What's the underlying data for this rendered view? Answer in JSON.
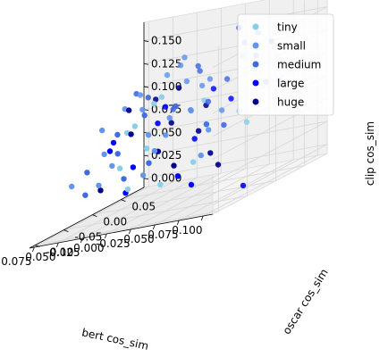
{
  "chart_data": {
    "type": "scatter",
    "projection": "3d",
    "xlabel": "bert cos_sim",
    "ylabel": "oscar cos_sim",
    "zlabel": "clip cos_sim",
    "xlim": [
      -0.11,
      0.08
    ],
    "ylim": [
      -0.11,
      0.09
    ],
    "zlim": [
      -0.01,
      0.17
    ],
    "xticks": [
      "-0.100",
      "-0.075",
      "-0.050",
      "-0.025",
      "0.000",
      "0.025",
      "0.050",
      "0.075"
    ],
    "yticks": [
      "-0.10",
      "-0.05",
      "0.00",
      "0.05"
    ],
    "zticks": [
      "0.000",
      "0.025",
      "0.050",
      "0.075",
      "0.100",
      "0.125",
      "0.150"
    ],
    "xtick_values": [
      -0.1,
      -0.075,
      -0.05,
      -0.025,
      0.0,
      0.025,
      0.05,
      0.075
    ],
    "ytick_values": [
      -0.1,
      -0.05,
      0.0,
      0.05
    ],
    "ztick_values": [
      0.0,
      0.025,
      0.05,
      0.075,
      0.1,
      0.125,
      0.15
    ],
    "grid": true,
    "legend_position": "top-right",
    "series": [
      {
        "name": "tiny",
        "color": "#87ceeb",
        "points": [
          [
            -0.07,
            0.03,
            0.11
          ],
          [
            -0.05,
            -0.02,
            0.07
          ],
          [
            -0.03,
            0.01,
            0.09
          ],
          [
            0.0,
            -0.04,
            0.06
          ],
          [
            -0.06,
            -0.06,
            0.04
          ],
          [
            0.02,
            0.02,
            0.1
          ],
          [
            -0.04,
            0.06,
            0.12
          ],
          [
            0.01,
            -0.07,
            0.05
          ],
          [
            -0.02,
            -0.05,
            0.02
          ],
          [
            0.03,
            -0.01,
            0.08
          ],
          [
            -0.08,
            0.0,
            0.06
          ],
          [
            0.04,
            0.04,
            0.09
          ],
          [
            -0.01,
            -0.09,
            0.03
          ],
          [
            0.05,
            0.01,
            0.07
          ],
          [
            -0.09,
            -0.03,
            0.08
          ]
        ]
      },
      {
        "name": "small",
        "color": "#6495ed",
        "points": [
          [
            -0.1,
            0.0,
            0.1
          ],
          [
            -0.07,
            -0.05,
            0.07
          ],
          [
            -0.06,
            0.05,
            0.12
          ],
          [
            -0.04,
            -0.03,
            0.09
          ],
          [
            -0.03,
            0.02,
            0.11
          ],
          [
            -0.02,
            -0.06,
            0.06
          ],
          [
            -0.01,
            0.04,
            0.1
          ],
          [
            0.0,
            0.0,
            0.08
          ],
          [
            0.01,
            -0.02,
            0.07
          ],
          [
            0.02,
            0.06,
            0.13
          ],
          [
            0.03,
            -0.05,
            0.05
          ],
          [
            0.04,
            0.02,
            0.09
          ],
          [
            0.05,
            -0.03,
            0.06
          ],
          [
            0.06,
            0.05,
            0.1
          ],
          [
            0.07,
            0.0,
            0.08
          ],
          [
            -0.05,
            0.07,
            0.14
          ],
          [
            -0.08,
            -0.08,
            0.05
          ],
          [
            0.02,
            -0.09,
            0.04
          ],
          [
            -0.03,
            0.08,
            0.13
          ],
          [
            0.06,
            -0.07,
            0.04
          ],
          [
            0.0,
            0.03,
            0.11
          ],
          [
            -0.06,
            -0.01,
            0.08
          ],
          [
            0.03,
            0.07,
            0.12
          ],
          [
            0.07,
            0.04,
            0.09
          ],
          [
            -0.02,
            -0.08,
            0.04
          ],
          [
            0.05,
            0.08,
            0.11
          ],
          [
            -0.09,
            0.04,
            0.09
          ],
          [
            0.01,
            0.01,
            0.06
          ]
        ]
      },
      {
        "name": "medium",
        "color": "#4169e1",
        "points": [
          [
            -0.06,
            0.02,
            0.16
          ],
          [
            -0.03,
            -0.04,
            0.1
          ],
          [
            0.0,
            0.05,
            0.12
          ],
          [
            0.02,
            -0.01,
            0.09
          ],
          [
            0.04,
            0.03,
            0.1
          ],
          [
            -0.05,
            -0.02,
            0.07
          ],
          [
            -0.01,
            0.02,
            0.08
          ],
          [
            0.03,
            -0.04,
            0.06
          ],
          [
            0.06,
            0.01,
            0.07
          ],
          [
            -0.07,
            0.06,
            0.13
          ],
          [
            0.01,
            0.07,
            0.11
          ],
          [
            -0.02,
            -0.07,
            0.05
          ],
          [
            0.05,
            -0.06,
            0.05
          ],
          [
            -0.04,
            0.0,
            0.09
          ],
          [
            0.07,
            0.06,
            0.1
          ],
          [
            0.02,
            0.04,
            0.08
          ],
          [
            -0.08,
            -0.04,
            0.07
          ],
          [
            0.0,
            -0.08,
            0.04
          ],
          [
            0.04,
            -0.08,
            0.03
          ],
          [
            -0.03,
            0.05,
            0.1
          ]
        ]
      },
      {
        "name": "large",
        "color": "#0000ff",
        "points": [
          [
            -0.1,
            -0.04,
            0.0
          ],
          [
            -0.05,
            -0.07,
            0.03
          ],
          [
            -0.02,
            0.01,
            0.05
          ],
          [
            0.01,
            -0.06,
            0.02
          ],
          [
            0.03,
            0.03,
            0.07
          ],
          [
            0.05,
            -0.02,
            0.06
          ],
          [
            -0.04,
            0.04,
            0.08
          ],
          [
            0.02,
            -0.03,
            0.04
          ],
          [
            0.07,
            0.02,
            0.06
          ],
          [
            -0.01,
            0.06,
            0.09
          ],
          [
            0.04,
            0.06,
            0.08
          ],
          [
            -0.07,
            -0.08,
            0.02
          ]
        ]
      },
      {
        "name": "huge",
        "color": "#00008b",
        "points": [
          [
            -0.06,
            -0.03,
            0.04
          ],
          [
            -0.03,
            0.0,
            0.06
          ],
          [
            0.0,
            -0.02,
            0.05
          ],
          [
            0.02,
            0.05,
            0.1
          ],
          [
            0.04,
            0.0,
            0.07
          ],
          [
            -0.02,
            0.03,
            0.08
          ],
          [
            0.06,
            0.03,
            0.09
          ],
          [
            -0.08,
            -0.05,
            0.03
          ],
          [
            0.03,
            -0.07,
            0.03
          ],
          [
            0.05,
            0.06,
            0.09
          ],
          [
            -0.04,
            -0.06,
            0.04
          ],
          [
            0.01,
            0.02,
            0.07
          ]
        ]
      }
    ]
  }
}
